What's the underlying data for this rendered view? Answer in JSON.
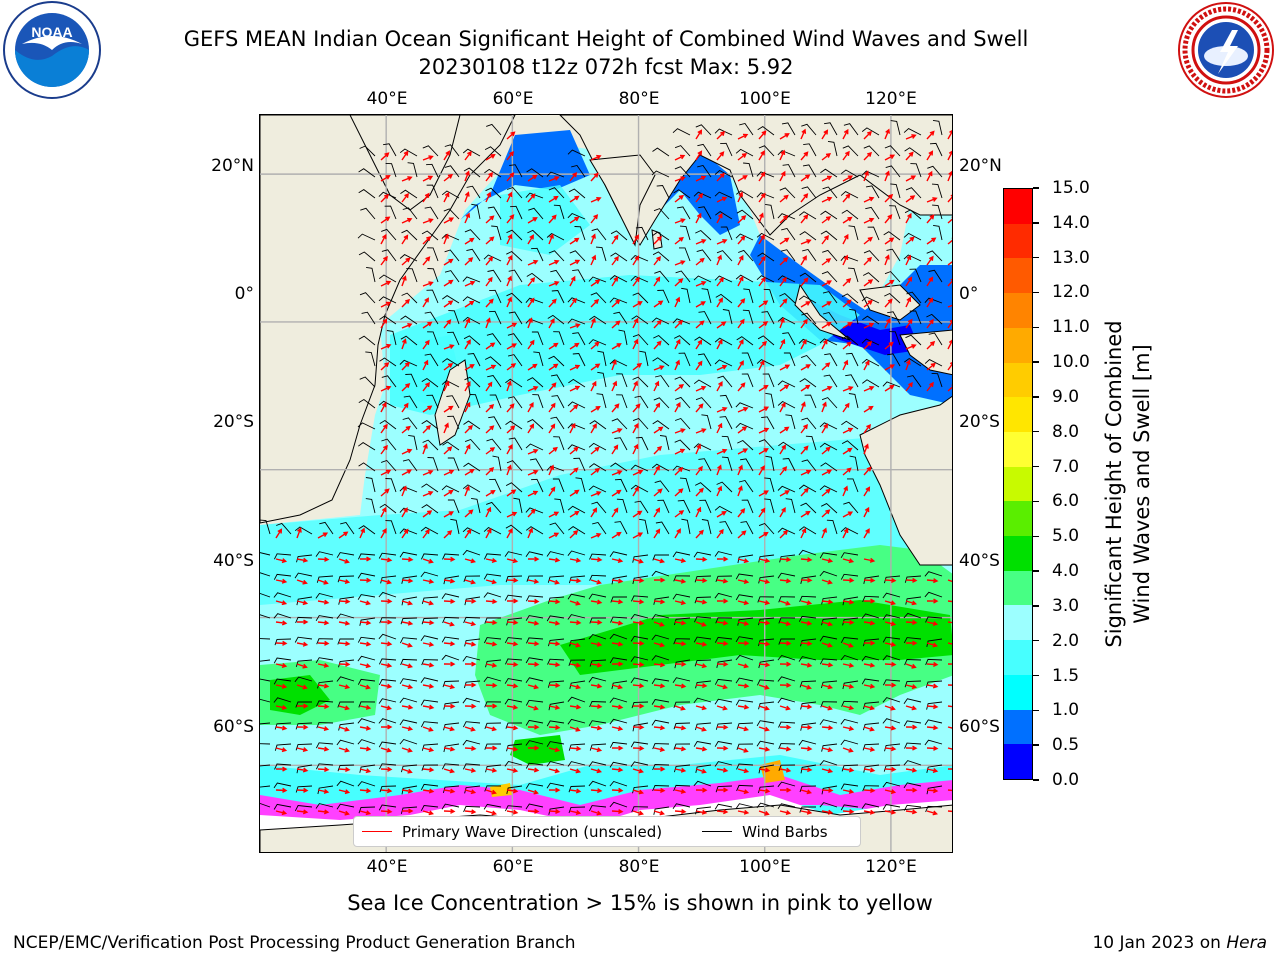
{
  "header": {
    "title_line1": "GEFS MEAN Indian Ocean Significant Height of Combined Wind Waves and Swell",
    "title_line2": "20230108 t12z 072h fcst   Max: 5.92"
  },
  "logos": {
    "left": {
      "name": "noaa-logo",
      "text": "NOAA",
      "ring_text": "NATIONAL OCEANIC AND ATMOSPHERIC ADMINISTRATION · U.S. DEPARTMENT OF COMMERCE"
    },
    "right": {
      "name": "nws-logo",
      "ring_text": "NATIONAL WEATHER SERVICE"
    }
  },
  "map": {
    "lon_ticks": [
      "40°E",
      "60°E",
      "80°E",
      "100°E",
      "120°E"
    ],
    "lat_ticks": [
      "20°N",
      "0°",
      "20°S",
      "40°S",
      "60°S"
    ],
    "lon_range_deg": [
      20,
      130
    ],
    "lat_range_deg": [
      -72,
      28
    ],
    "max_wave_height_m": 5.92,
    "land_color": "#efedde",
    "gridline_color": "#b0b0b0"
  },
  "legend": {
    "wave_direction_label": "Primary Wave Direction (unscaled)",
    "wind_barbs_label": "Wind Barbs",
    "wave_direction_color": "#ff0000",
    "wind_barbs_color": "#000000"
  },
  "colorbar": {
    "label_line1": "Significant Height of Combined",
    "label_line2": "Wind Waves and Swell [m]",
    "ticks": [
      "0.0",
      "0.5",
      "1.0",
      "1.5",
      "2.0",
      "3.0",
      "4.0",
      "5.0",
      "6.0",
      "7.0",
      "8.0",
      "9.0",
      "10.0",
      "11.0",
      "12.0",
      "13.0",
      "14.0",
      "15.0"
    ],
    "colors": [
      "#0000ff",
      "#0070ff",
      "#00ffff",
      "#47ffff",
      "#9cffff",
      "#47ff84",
      "#00e000",
      "#5aee00",
      "#c8fa00",
      "#ffff32",
      "#ffe600",
      "#ffcc00",
      "#ffaa00",
      "#ff8400",
      "#ff5a00",
      "#ff2b00",
      "#ff0000"
    ]
  },
  "footnote": "Sea Ice Concentration > 15% is shown in pink to yellow",
  "credits": {
    "left": "NCEP/EMC/Verification Post Processing Product Generation Branch",
    "right_prefix": "10 Jan 2023 on ",
    "right_host": "Hera"
  }
}
